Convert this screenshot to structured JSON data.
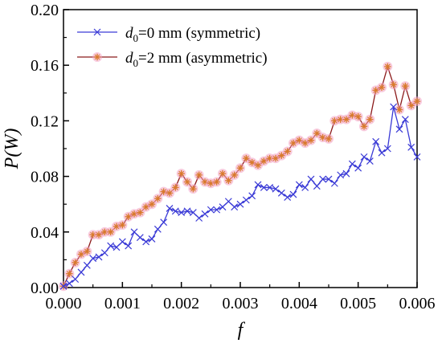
{
  "chart_data": {
    "type": "line",
    "title": "",
    "xlabel": "f",
    "ylabel": "P(W)",
    "xlim": [
      0,
      0.006
    ],
    "ylim": [
      0,
      0.2
    ],
    "x_ticks": [
      "0.000",
      "0.001",
      "0.002",
      "0.003",
      "0.004",
      "0.005",
      "0.006"
    ],
    "y_ticks": [
      "0.00",
      "0.04",
      "0.08",
      "0.12",
      "0.16",
      "0.20"
    ],
    "grid": false,
    "legend_position": "top-left",
    "x": [
      0.0,
      0.0001,
      0.0002,
      0.0003,
      0.0004,
      0.0005,
      0.0006,
      0.0007,
      0.0008,
      0.0009,
      0.001,
      0.0011,
      0.0012,
      0.0013,
      0.0014,
      0.0015,
      0.0016,
      0.0017,
      0.0018,
      0.0019,
      0.002,
      0.0021,
      0.0022,
      0.0023,
      0.0024,
      0.0025,
      0.0026,
      0.0027,
      0.0028,
      0.0029,
      0.003,
      0.0031,
      0.0032,
      0.0033,
      0.0034,
      0.0035,
      0.0036,
      0.0037,
      0.0038,
      0.0039,
      0.004,
      0.0041,
      0.0042,
      0.0043,
      0.0044,
      0.0045,
      0.0046,
      0.0047,
      0.0048,
      0.0049,
      0.005,
      0.0051,
      0.0052,
      0.0053,
      0.0054,
      0.0055,
      0.0056,
      0.0057,
      0.0058,
      0.0059,
      0.006
    ],
    "series": [
      {
        "name": "d0=0 mm (symmetric)",
        "legend_main": "d",
        "legend_sub": "0",
        "legend_rest": "=0 mm (symmetric)",
        "color": "#3a3ad6",
        "marker": "x",
        "values": [
          0.001,
          0.003,
          0.006,
          0.011,
          0.016,
          0.021,
          0.022,
          0.025,
          0.03,
          0.029,
          0.033,
          0.03,
          0.04,
          0.036,
          0.033,
          0.035,
          0.042,
          0.047,
          0.057,
          0.055,
          0.054,
          0.055,
          0.054,
          0.05,
          0.053,
          0.056,
          0.056,
          0.058,
          0.062,
          0.058,
          0.06,
          0.063,
          0.066,
          0.074,
          0.072,
          0.072,
          0.071,
          0.068,
          0.065,
          0.067,
          0.074,
          0.072,
          0.078,
          0.073,
          0.078,
          0.078,
          0.075,
          0.081,
          0.082,
          0.089,
          0.086,
          0.094,
          0.091,
          0.105,
          0.097,
          0.1,
          0.13,
          0.114,
          0.121,
          0.101,
          0.094
        ]
      },
      {
        "name": "d0=2 mm (asymmetric)",
        "legend_main": "d",
        "legend_sub": "0",
        "legend_rest": "=2 mm (asymmetric)",
        "color": "#8b1a1a",
        "marker_color": "#d97a2b",
        "halo_color": "#f2a0c2",
        "marker": "*",
        "values": [
          0.001,
          0.01,
          0.018,
          0.024,
          0.026,
          0.038,
          0.038,
          0.04,
          0.04,
          0.044,
          0.045,
          0.051,
          0.053,
          0.054,
          0.058,
          0.06,
          0.064,
          0.069,
          0.068,
          0.072,
          0.082,
          0.076,
          0.071,
          0.081,
          0.076,
          0.075,
          0.076,
          0.082,
          0.077,
          0.081,
          0.086,
          0.093,
          0.09,
          0.088,
          0.091,
          0.093,
          0.093,
          0.095,
          0.098,
          0.104,
          0.106,
          0.104,
          0.106,
          0.111,
          0.108,
          0.107,
          0.12,
          0.121,
          0.121,
          0.124,
          0.123,
          0.116,
          0.121,
          0.142,
          0.144,
          0.159,
          0.146,
          0.128,
          0.145,
          0.131,
          0.134
        ]
      }
    ]
  }
}
